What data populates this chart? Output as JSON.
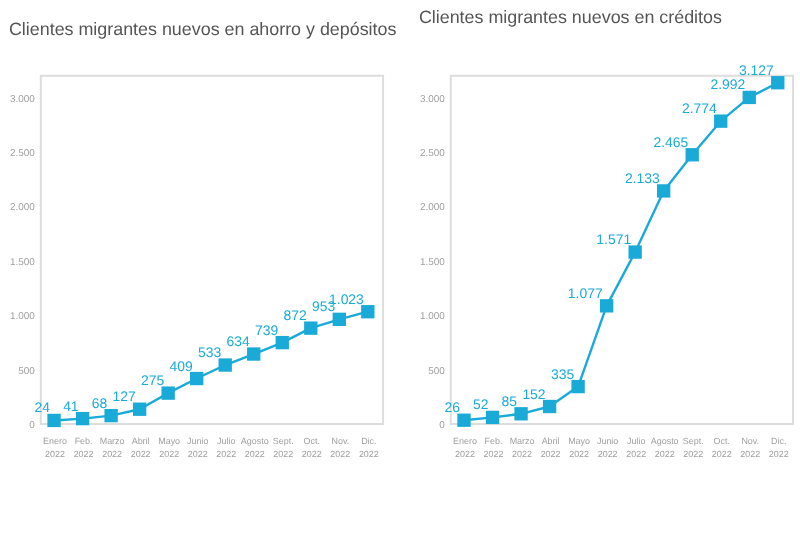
{
  "chart_data": [
    {
      "type": "line",
      "title": "Clientes migrantes nuevos en ahorro y depósitos",
      "categories": [
        "Enero 2022",
        "Feb. 2022",
        "Marzo 2022",
        "Abril 2022",
        "Mayo 2022",
        "Junio 2022",
        "Julio 2022",
        "Agosto 2022",
        "Sept. 2022",
        "Oct. 2022",
        "Nov. 2022",
        "Dic. 2022"
      ],
      "series": [
        {
          "color": "#1aaad8",
          "values": [
            24,
            41,
            68,
            127,
            275,
            409,
            533,
            634,
            739,
            872,
            953,
            1023
          ],
          "value_labels": [
            "24",
            "41",
            "68",
            "127",
            "275",
            "409",
            "533",
            "634",
            "739",
            "872",
            "953",
            "1.023"
          ]
        }
      ],
      "ylim": [
        0,
        3200
      ],
      "yticks": [
        0,
        {
          "value": 500,
          "label": "500"
        },
        {
          "value": 1000,
          "label": "1.000"
        },
        {
          "value": 1500,
          "label": "1.500"
        },
        {
          "value": 2000,
          "label": "2.000"
        },
        {
          "value": 2500,
          "label": "2.500"
        },
        {
          "value": 3000,
          "label": "3.000"
        }
      ],
      "marker": "square",
      "grid": false
    },
    {
      "type": "line",
      "title": "Clientes migrantes nuevos en créditos",
      "categories": [
        "Enero 2022",
        "Feb. 2022",
        "Marzo 2022",
        "Abril 2022",
        "Mayo 2022",
        "Junio 2022",
        "Julio 2022",
        "Agosto 2022",
        "Sept. 2022",
        "Oct. 2022",
        "Nov. 2022",
        "Dic. 2022"
      ],
      "series": [
        {
          "color": "#1aaad8",
          "values": [
            26,
            52,
            85,
            152,
            335,
            1077,
            1571,
            2133,
            2465,
            2774,
            2992,
            3127
          ],
          "value_labels": [
            "26",
            "52",
            "85",
            "152",
            "335",
            "1.077",
            "1.571",
            "2.133",
            "2.465",
            "2.774",
            "2.992",
            "3.127"
          ]
        }
      ],
      "ylim": [
        0,
        3200
      ],
      "yticks": [
        0,
        {
          "value": 500,
          "label": "500"
        },
        {
          "value": 1000,
          "label": "1.000"
        },
        {
          "value": 1500,
          "label": "1.500"
        },
        {
          "value": 2000,
          "label": "2.000"
        },
        {
          "value": 2500,
          "label": "2.500"
        },
        {
          "value": 3000,
          "label": "3.000"
        }
      ],
      "marker": "square",
      "grid": false
    }
  ]
}
